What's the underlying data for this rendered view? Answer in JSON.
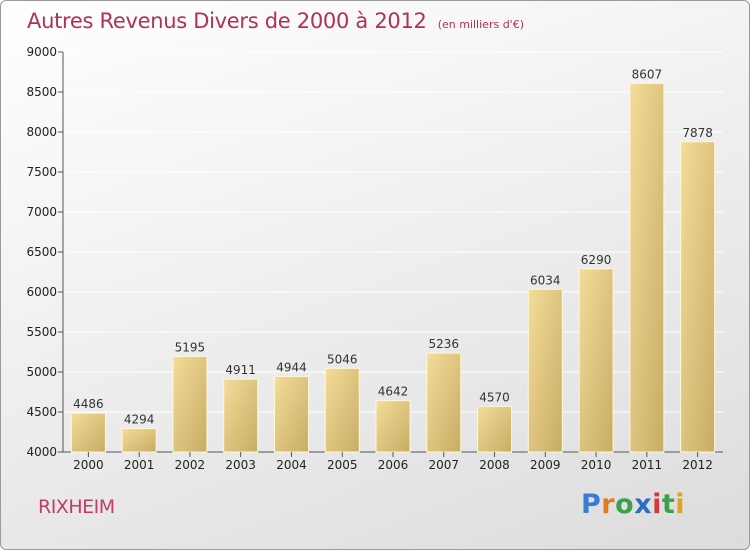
{
  "title": "Autres Revenus Divers de 2000 à 2012",
  "subtitle": "(en milliers d'€)",
  "city": "RIXHEIM",
  "brand": {
    "text": "Proxiti",
    "letters": [
      {
        "char": "P",
        "color": "#3a7bd5"
      },
      {
        "char": "r",
        "color": "#e07a1f"
      },
      {
        "char": "o",
        "color": "#3aa14a"
      },
      {
        "char": "x",
        "color": "#2a6ec4"
      },
      {
        "char": "i",
        "color": "#d23b3b"
      },
      {
        "char": "t",
        "color": "#3aa14a"
      },
      {
        "char": "i",
        "color": "#e0a21f"
      }
    ]
  },
  "colors": {
    "title": "#b0305c",
    "bar_light": "#f4dc9a",
    "bar_dark": "#c7ac63",
    "grid": "#ffffff",
    "axis": "#555555"
  },
  "chart_data": {
    "type": "bar",
    "categories": [
      "2000",
      "2001",
      "2002",
      "2003",
      "2004",
      "2005",
      "2006",
      "2007",
      "2008",
      "2009",
      "2010",
      "2011",
      "2012"
    ],
    "values": [
      4486,
      4294,
      5195,
      4911,
      4944,
      5046,
      4642,
      5236,
      4570,
      6034,
      6290,
      8607,
      7878
    ],
    "yticks": [
      4000,
      4500,
      5000,
      5500,
      6000,
      6500,
      7000,
      7500,
      8000,
      8500,
      9000
    ],
    "ylim": [
      4000,
      9000
    ],
    "grid": true,
    "legend": "none"
  }
}
